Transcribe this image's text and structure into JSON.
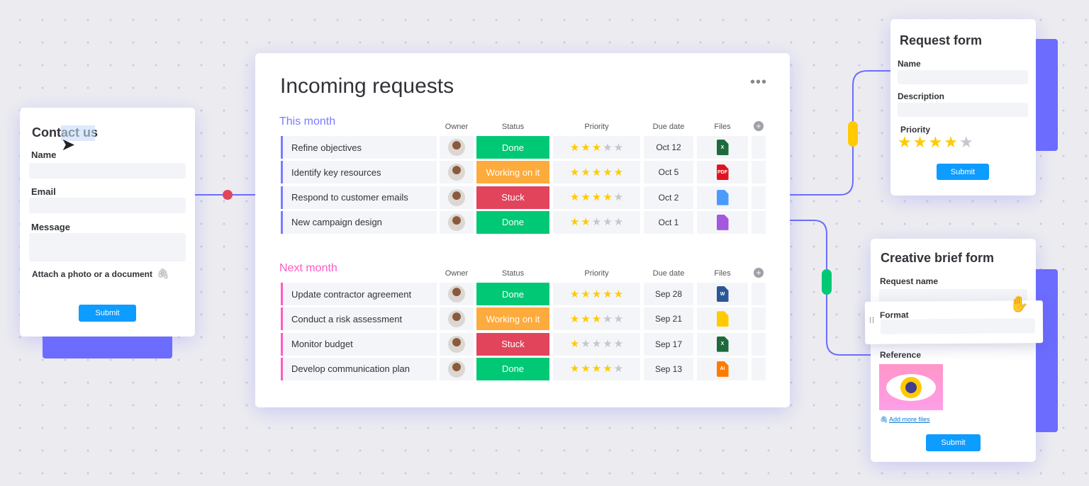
{
  "contact_form": {
    "title": "Contact us",
    "fields": [
      "Name",
      "Email",
      "Message"
    ],
    "attach_label": "Attach a photo or a document",
    "submit": "Submit"
  },
  "board": {
    "title": "Incoming requests",
    "columns": [
      "Owner",
      "Status",
      "Priority",
      "Due date",
      "Files"
    ],
    "groups": [
      {
        "name": "This month",
        "color": "#7b7bff",
        "items": [
          {
            "name": "Refine objectives",
            "status": "Done",
            "priority": 3,
            "due": "Oct 12",
            "file": "X",
            "file_type": "excel"
          },
          {
            "name": "Identify key resources",
            "status": "Working on it",
            "priority": 5,
            "due": "Oct 5",
            "file": "PDF",
            "file_type": "pdf"
          },
          {
            "name": "Respond to customer emails",
            "status": "Stuck",
            "priority": 4,
            "due": "Oct 2",
            "file": "",
            "file_type": "image"
          },
          {
            "name": "New campaign design",
            "status": "Done",
            "priority": 2,
            "due": "Oct 1",
            "file": "",
            "file_type": "video"
          }
        ]
      },
      {
        "name": "Next month",
        "color": "#ff5ac4",
        "items": [
          {
            "name": "Update contractor agreement",
            "status": "Done",
            "priority": 5,
            "due": "Sep 28",
            "file": "W",
            "file_type": "word"
          },
          {
            "name": "Conduct a risk assessment",
            "status": "Working on it",
            "priority": 3,
            "due": "Sep 21",
            "file": "",
            "file_type": "zip"
          },
          {
            "name": "Monitor budget",
            "status": "Stuck",
            "priority": 1,
            "due": "Sep 17",
            "file": "X",
            "file_type": "excel"
          },
          {
            "name": "Develop communication plan",
            "status": "Done",
            "priority": 4,
            "due": "Sep 13",
            "file": "Ai",
            "file_type": "illustrator"
          }
        ]
      }
    ]
  },
  "status_colors": {
    "Done": "#00c875",
    "Working on it": "#fdab3d",
    "Stuck": "#e2445c"
  },
  "file_colors": {
    "excel": "#1d6b3c",
    "pdf": "#e0141e",
    "image": "#4a9bff",
    "video": "#a358df",
    "word": "#2b5797",
    "zip": "#ffcb00",
    "illustrator": "#ff7a00"
  },
  "request_form": {
    "title": "Request form",
    "fields": [
      "Name",
      "Description"
    ],
    "priority_label": "Priority",
    "priority": 4,
    "submit": "Submit"
  },
  "brief_form": {
    "title": "Creative brief form",
    "fields": [
      "Request name",
      "Format"
    ],
    "reference_label": "Reference",
    "add_files": "Add more files",
    "submit": "Submit"
  },
  "connector_colors": {
    "contact": "#e2445c",
    "request": "#ffcb00",
    "brief": "#00c875",
    "line": "#6c6cff"
  }
}
